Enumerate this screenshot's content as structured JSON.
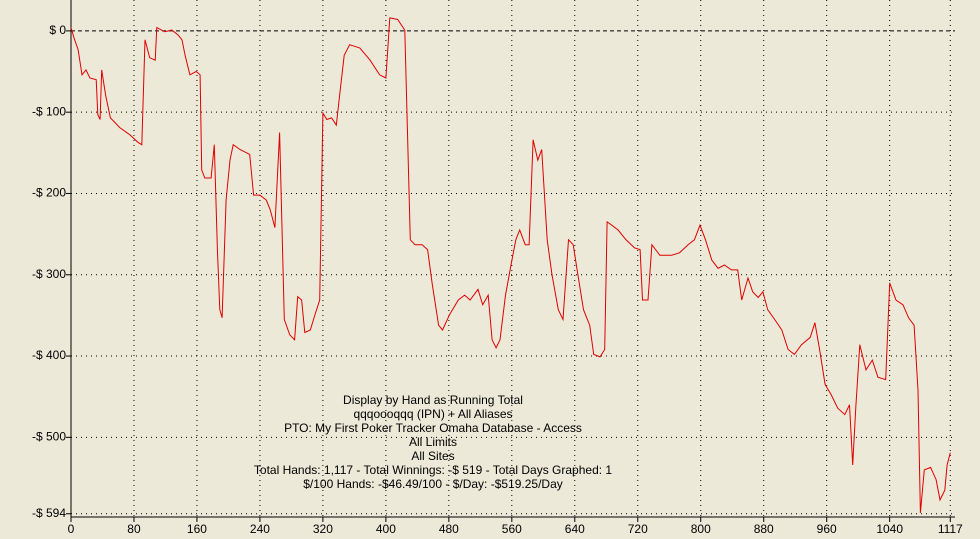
{
  "chart_data": {
    "type": "line",
    "annotations": [
      "Display by Hand as Running Total",
      "qqqoooqqq (IPN) + All Aliases",
      "PTO: My First Poker Tracker Omaha Database - Access",
      "All Limits",
      "All Sites",
      "Total Hands: 1,117 - Total Winnings: -$ 519 - Total Days Graphed: 1",
      "$/100 Hands: -$46.49/100 - $/Day: -$519.25/Day"
    ],
    "xlim": [
      0,
      1123
    ],
    "ylim": [
      -598,
      38
    ],
    "xticks": [
      0,
      80,
      160,
      240,
      320,
      400,
      480,
      560,
      640,
      720,
      800,
      880,
      960,
      1040,
      1117
    ],
    "yticks": [
      {
        "value": 0,
        "label": "$ 0"
      },
      {
        "value": -100,
        "label": "-$ 100"
      },
      {
        "value": -200,
        "label": "-$ 200"
      },
      {
        "value": -300,
        "label": "-$ 300"
      },
      {
        "value": -400,
        "label": "-$ 400"
      },
      {
        "value": -500,
        "label": "-$ 500"
      },
      {
        "value": -594,
        "label": "-$ 594"
      }
    ],
    "grid": true,
    "series": [
      {
        "color": "#e00000",
        "x": [
          0,
          4,
          9,
          14,
          19,
          24,
          32,
          34,
          37,
          39,
          44,
          50,
          62,
          75,
          85,
          90,
          94,
          100,
          107,
          109,
          119,
          128,
          136,
          141,
          145,
          151,
          159,
          164,
          166,
          170,
          178,
          182,
          186,
          189,
          192,
          197,
          202,
          206,
          215,
          227,
          232,
          240,
          248,
          253,
          259,
          265,
          271,
          278,
          284,
          288,
          293,
          297,
          304,
          310,
          316,
          320,
          325,
          331,
          337,
          342,
          347,
          354,
          367,
          380,
          392,
          400,
          405,
          415,
          424,
          431,
          437,
          446,
          453,
          459,
          467,
          472,
          481,
          492,
          500,
          507,
          517,
          523,
          530,
          535,
          540,
          545,
          552,
          559,
          565,
          570,
          577,
          582,
          587,
          593,
          598,
          605,
          611,
          619,
          625,
          632,
          638,
          644,
          651,
          659,
          664,
          672,
          678,
          681,
          687,
          695,
          705,
          716,
          723,
          726,
          733,
          738,
          748,
          763,
          773,
          784,
          792,
          799,
          806,
          814,
          822,
          830,
          839,
          847,
          852,
          860,
          866,
          873,
          879,
          885,
          894,
          903,
          911,
          919,
          928,
          939,
          945,
          951,
          958,
          966,
          974,
          983,
          989,
          993,
          997,
          1002,
          1010,
          1018,
          1025,
          1035,
          1040,
          1048,
          1057,
          1064,
          1071,
          1076,
          1079,
          1084,
          1092,
          1099,
          1104,
          1110,
          1113,
          1117
        ],
        "values": [
          4,
          -9,
          -23,
          -54,
          -48,
          -58,
          -60,
          -103,
          -109,
          -48,
          -79,
          -107,
          -119,
          -128,
          -137,
          -140,
          -11,
          -33,
          -36,
          4,
          -1,
          1,
          -5,
          -11,
          -30,
          -54,
          -50,
          -54,
          -171,
          -181,
          -181,
          -140,
          -269,
          -343,
          -353,
          -208,
          -159,
          -140,
          -146,
          -152,
          -202,
          -202,
          -208,
          -220,
          -242,
          -125,
          -355,
          -374,
          -380,
          -327,
          -331,
          -371,
          -368,
          -349,
          -331,
          -101,
          -109,
          -107,
          -116,
          -73,
          -30,
          -17,
          -21,
          -36,
          -54,
          -58,
          16,
          14,
          1,
          -257,
          -263,
          -263,
          -269,
          -312,
          -362,
          -368,
          -349,
          -331,
          -325,
          -331,
          -318,
          -337,
          -325,
          -380,
          -390,
          -380,
          -325,
          -288,
          -257,
          -245,
          -263,
          -263,
          -134,
          -159,
          -146,
          -257,
          -300,
          -343,
          -355,
          -257,
          -263,
          -300,
          -343,
          -362,
          -398,
          -401,
          -392,
          -235,
          -239,
          -245,
          -257,
          -267,
          -269,
          -331,
          -331,
          -263,
          -276,
          -276,
          -273,
          -263,
          -257,
          -239,
          -257,
          -282,
          -292,
          -288,
          -294,
          -294,
          -331,
          -304,
          -321,
          -328,
          -321,
          -343,
          -355,
          -368,
          -392,
          -398,
          -386,
          -377,
          -359,
          -392,
          -435,
          -448,
          -464,
          -472,
          -460,
          -534,
          -463,
          -386,
          -417,
          -405,
          -426,
          -429,
          -310,
          -331,
          -337,
          -353,
          -362,
          -442,
          -593,
          -540,
          -537,
          -552,
          -577,
          -565,
          -534,
          -519
        ]
      }
    ]
  }
}
